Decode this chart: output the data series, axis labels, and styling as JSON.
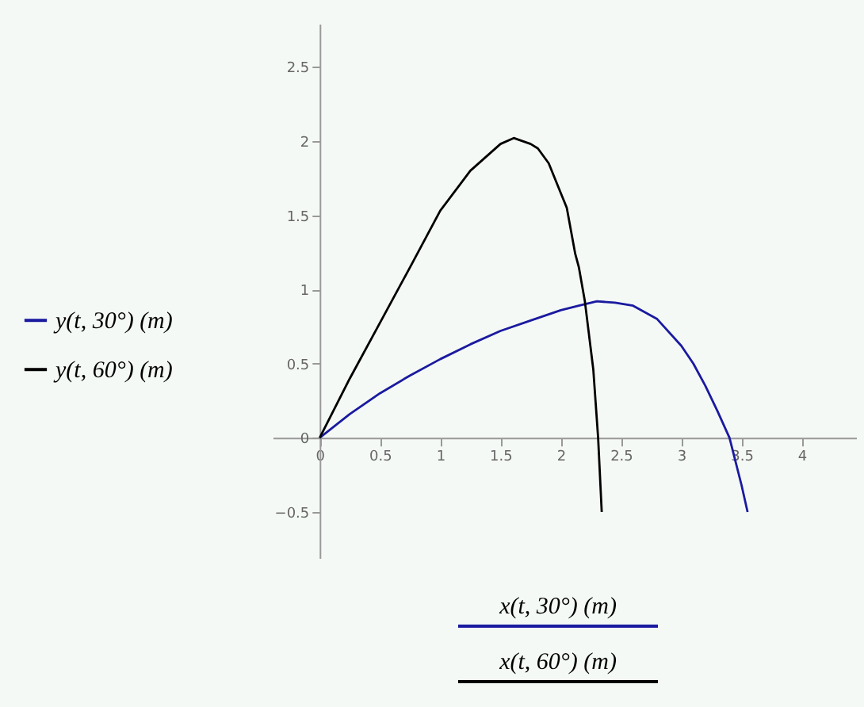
{
  "chart_data": {
    "type": "line",
    "xlim": [
      -0.39,
      4.45
    ],
    "ylim": [
      -0.81,
      2.79
    ],
    "xticks": [
      0,
      0.5,
      1,
      1.5,
      2,
      2.5,
      3,
      3.5,
      4
    ],
    "yticks": [
      -0.5,
      0,
      0.5,
      1,
      1.5,
      2,
      2.5
    ],
    "grid": false,
    "legend": "left",
    "line_style": "solid",
    "series": [
      {
        "name": "y(t, 30°)  (m)",
        "color": "#1a1aa0",
        "x": [
          0,
          0.25,
          0.5,
          0.75,
          1,
          1.25,
          1.5,
          1.75,
          2,
          2.15,
          2.3,
          2.45,
          2.6,
          2.8,
          3,
          3.1,
          3.2,
          3.3,
          3.4,
          3.5,
          3.55
        ],
        "values": [
          0,
          0.16,
          0.3,
          0.42,
          0.53,
          0.63,
          0.72,
          0.79,
          0.86,
          0.89,
          0.92,
          0.91,
          0.89,
          0.8,
          0.62,
          0.5,
          0.35,
          0.18,
          0.0,
          -0.32,
          -0.5
        ]
      },
      {
        "name": "y(t, 60°)  (m)",
        "color": "#000000",
        "x": [
          0,
          0.25,
          0.49,
          0.75,
          1,
          1.25,
          1.5,
          1.61,
          1.75,
          1.81,
          1.9,
          2.01,
          2.05,
          2.12,
          2.15,
          2.2,
          2.27,
          2.31,
          2.34
        ],
        "values": [
          0,
          0.4,
          0.76,
          1.15,
          1.53,
          1.8,
          1.98,
          2.02,
          1.98,
          1.95,
          1.85,
          1.63,
          1.55,
          1.24,
          1.15,
          0.92,
          0.46,
          0,
          -0.5
        ]
      }
    ],
    "annotations": [
      "x(t, 30°)  (m)",
      "x(t, 60°)  (m)"
    ]
  }
}
